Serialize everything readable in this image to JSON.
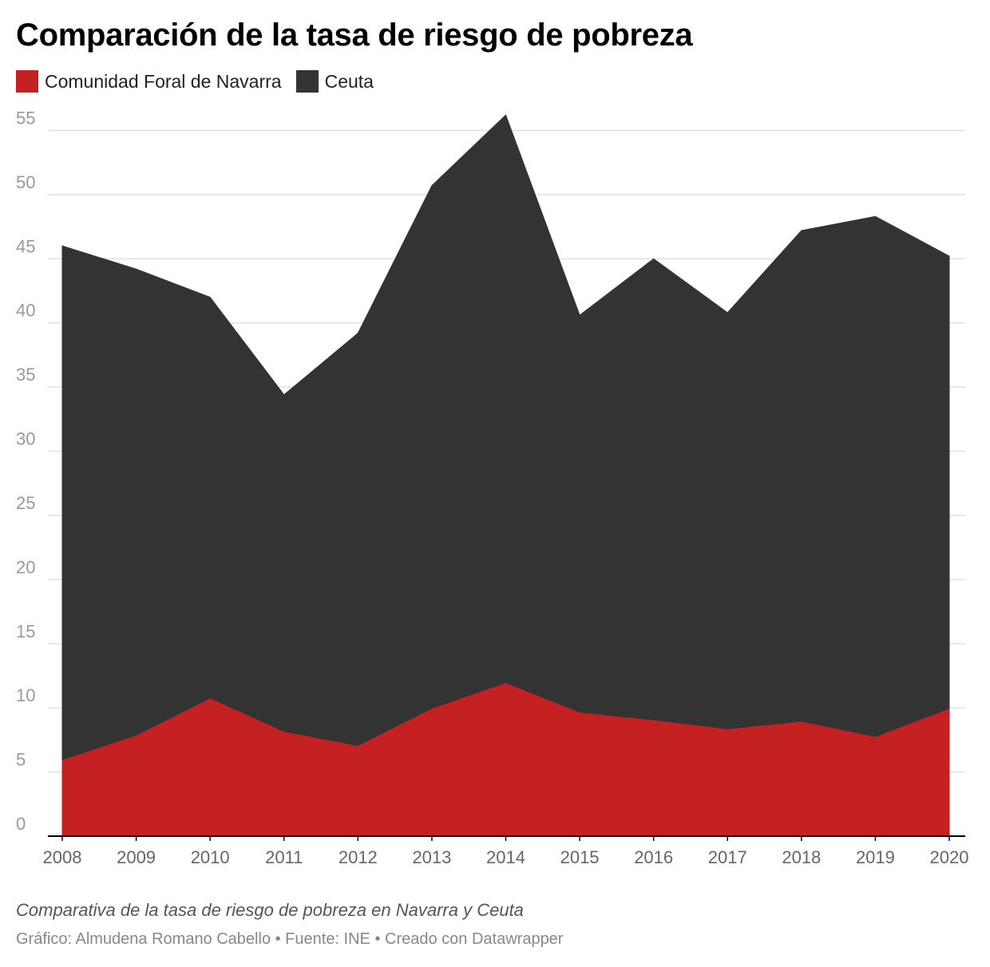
{
  "title": "Comparación de la tasa de riesgo de pobreza",
  "legend": [
    {
      "label": "Comunidad Foral de Navarra",
      "color": "#c62122"
    },
    {
      "label": "Ceuta",
      "color": "#333333"
    }
  ],
  "notes": "Comparativa de la tasa de riesgo de pobreza en Navarra y Ceuta",
  "footer": "Gráfico: Almudena Romano Cabello • Fuente: INE • Creado con Datawrapper",
  "chart_data": {
    "type": "area",
    "title": "Comparación de la tasa de riesgo de pobreza",
    "x": [
      2008,
      2009,
      2010,
      2011,
      2012,
      2013,
      2014,
      2015,
      2016,
      2017,
      2018,
      2019,
      2020
    ],
    "series": [
      {
        "name": "Comunidad Foral de Navarra",
        "color": "#c62122",
        "values": [
          5.9,
          7.8,
          10.7,
          8.1,
          7.0,
          9.9,
          11.9,
          9.6,
          9.0,
          8.3,
          8.9,
          7.7,
          9.9
        ]
      },
      {
        "name": "Ceuta",
        "color": "#333333",
        "values": [
          46.0,
          44.2,
          42.0,
          34.4,
          39.2,
          50.7,
          56.2,
          40.6,
          45.0,
          40.8,
          47.2,
          48.3,
          45.2
        ]
      }
    ],
    "ylim": [
      0,
      55
    ],
    "yticks": [
      0,
      5,
      10,
      15,
      20,
      25,
      30,
      35,
      40,
      45,
      50,
      55
    ],
    "grid": true,
    "legend_position": "top-left",
    "xlabel": "",
    "ylabel": ""
  }
}
